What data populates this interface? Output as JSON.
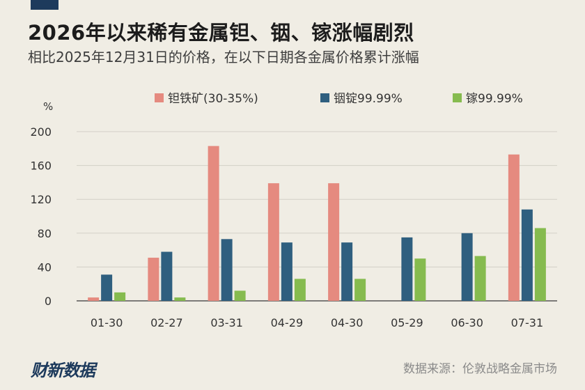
{
  "header": {
    "title": "2026年以来稀有金属钽、铟、镓涨幅剧烈",
    "subtitle": "相比2025年12月31日的价格，在以下日期各金属价格累计涨幅"
  },
  "footer": {
    "logo": "财新数据",
    "source": "数据来源：伦敦战略金属市场"
  },
  "colors": {
    "background": "#f0ede4",
    "tantalum": "#e58a7f",
    "indium": "#2f5f7f",
    "gallium": "#86bb4f",
    "brand": "#1d3a5c"
  },
  "chart_data": {
    "type": "bar",
    "title": "",
    "ylabel": "%",
    "xlabel": "",
    "ylim": [
      0,
      200
    ],
    "yticks": [
      0,
      40,
      80,
      120,
      160,
      200
    ],
    "grid": true,
    "legend_position": "top",
    "categories": [
      "01-30",
      "02-27",
      "03-31",
      "04-29",
      "04-30",
      "05-29",
      "06-30",
      "07-31"
    ],
    "series": [
      {
        "name": "钽铁矿(30-35%)",
        "color": "#e58a7f",
        "values": [
          4,
          51,
          183,
          139,
          139,
          null,
          null,
          173
        ]
      },
      {
        "name": "铟锭99.99%",
        "color": "#2f5f7f",
        "values": [
          31,
          58,
          73,
          69,
          69,
          75,
          80,
          108
        ]
      },
      {
        "name": "镓99.99%",
        "color": "#86bb4f",
        "values": [
          10,
          4,
          12,
          26,
          26,
          50,
          53,
          86
        ]
      }
    ]
  }
}
